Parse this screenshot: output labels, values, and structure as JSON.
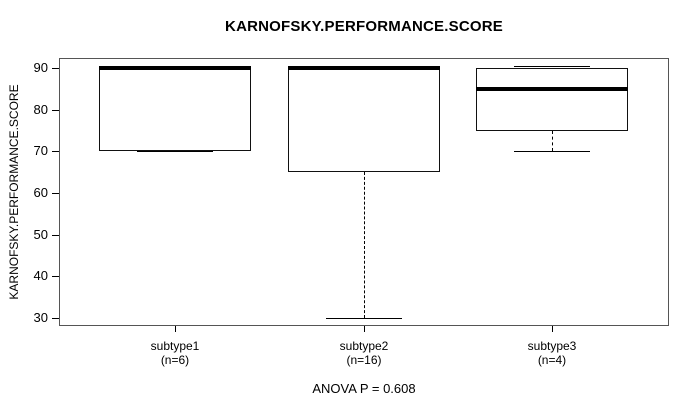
{
  "chart_data": {
    "type": "boxplot",
    "title": "KARNOFSKY.PERFORMANCE.SCORE",
    "ylabel": "KARNOFSKY.PERFORMANCE.SCORE",
    "xlabel": "",
    "annotation": "ANOVA P = 0.608",
    "ylim": [
      30,
      90
    ],
    "yticks": [
      30,
      40,
      50,
      60,
      70,
      80,
      90
    ],
    "grid": false,
    "legend": null,
    "categories": [
      "subtype1",
      "subtype2",
      "subtype3"
    ],
    "category_counts": [
      "(n=6)",
      "(n=16)",
      "(n=4)"
    ],
    "series": [
      {
        "name": "subtype1",
        "count_label": "(n=6)",
        "min": 70,
        "q1": 70,
        "median": 90,
        "q3": 90,
        "max": 90
      },
      {
        "name": "subtype2",
        "count_label": "(n=16)",
        "min": 30,
        "q1": 65,
        "median": 90,
        "q3": 90,
        "max": 90
      },
      {
        "name": "subtype3",
        "count_label": "(n=4)",
        "min": 70,
        "q1": 75,
        "median": 85,
        "q3": 90,
        "max": 90
      }
    ],
    "colors": {
      "line": "#000000",
      "frame": "#555555",
      "background": "#ffffff"
    }
  }
}
